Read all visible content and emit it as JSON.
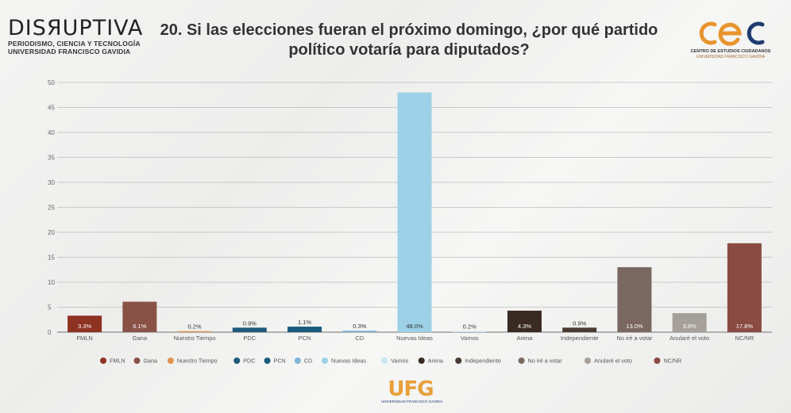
{
  "brand": {
    "name": "DISЯUPTIVA",
    "line1": "PERIODISMO, CIENCIA Y TECNOLOGÍA",
    "line2": "UNIVERSIDAD FRANCISCO GAVIDIA"
  },
  "cec": {
    "mark": "cec",
    "name": "CENTRO DE ESTUDIOS CIUDADANOS",
    "sub": "UNIVERSIDAD FRANCISCO GAVIDIA"
  },
  "footer": {
    "mark": "UFG",
    "sub": "UNIVERSIDAD FRANCISCO GAVIDIA"
  },
  "chart_data": {
    "type": "bar",
    "title": "20. Si las elecciones fueran el próximo domingo, ¿por qué partido político votaría para diputados?",
    "categories": [
      "FMLN",
      "Gana",
      "Nuestro Tiempo",
      "PDC",
      "PCN",
      "CD",
      "Nuevas Ideas",
      "Vamos",
      "Arena",
      "Independiente",
      "No iré a votar",
      "Anularé el voto",
      "NC/NR"
    ],
    "values": [
      3.3,
      6.1,
      0.2,
      0.9,
      1.1,
      0.3,
      48.0,
      0.2,
      4.3,
      0.9,
      13.0,
      3.8,
      17.8
    ],
    "value_labels": [
      "3.3%",
      "6.1%",
      "0.2%",
      "0.9%",
      "1.1%",
      "0.3%",
      "48.0%",
      "0.2%",
      "4.3%",
      "0.9%",
      "13.0%",
      "3.8%",
      "17.8%"
    ],
    "colors": [
      "#8e3221",
      "#8a5247",
      "#e3924e",
      "#1e5a7c",
      "#1b5b7d",
      "#7fb6d8",
      "#9dd1e7",
      "#c9e6ef",
      "#3a2b22",
      "#4a3a32",
      "#7a6760",
      "#a6a09b",
      "#8a4b42"
    ],
    "yticks": [
      0,
      5,
      10,
      15,
      20,
      25,
      30,
      35,
      40,
      45,
      50
    ],
    "ylim": [
      0,
      50
    ],
    "grid": true,
    "legend": "bottom",
    "xlabel": "",
    "ylabel": ""
  }
}
